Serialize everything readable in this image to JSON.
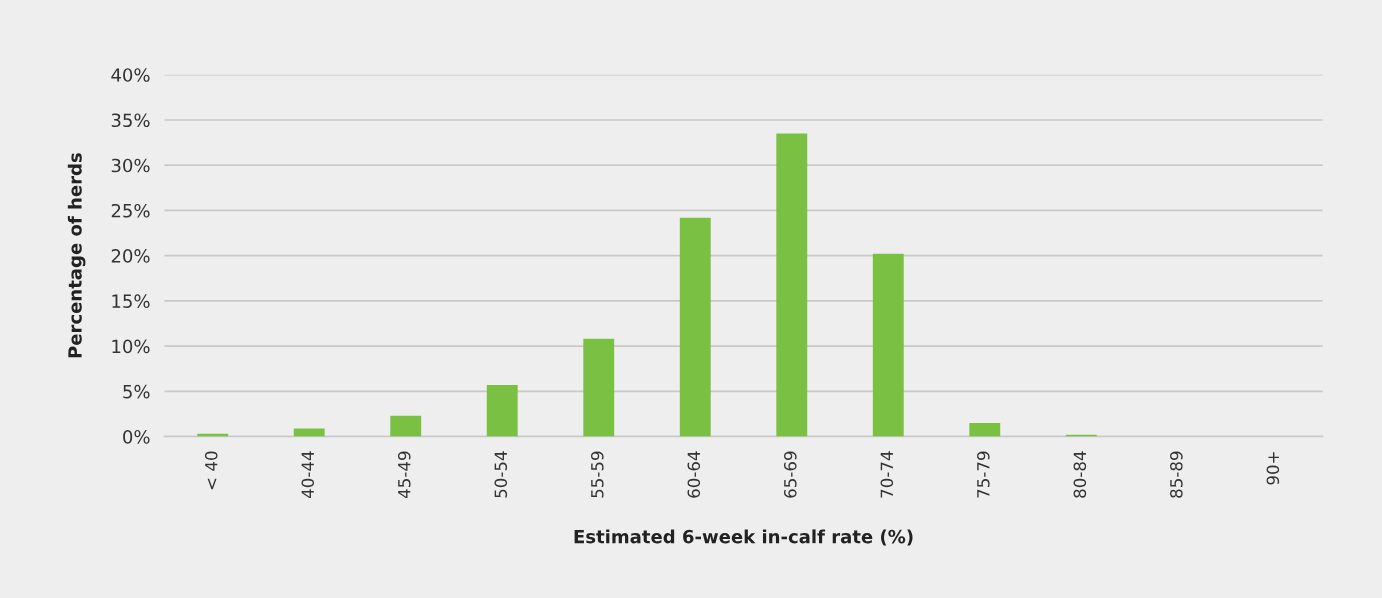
{
  "chart_data": {
    "type": "bar",
    "xlabel": "Estimated 6-week in-calf rate (%)",
    "ylabel": "Percentage of herds",
    "categories": [
      "< 40",
      "40-44",
      "45-49",
      "50-54",
      "55-59",
      "60-64",
      "65-69",
      "70-74",
      "75-79",
      "80-84",
      "85-89",
      "90+"
    ],
    "values": [
      0.3,
      0.9,
      2.3,
      5.7,
      10.8,
      24.2,
      33.5,
      20.2,
      1.5,
      0.2,
      0,
      0
    ],
    "color": "#7ac143",
    "ylim": [
      0,
      40
    ],
    "yticks": [
      {
        "value": 0,
        "label": "0%"
      },
      {
        "value": 5,
        "label": "5%"
      },
      {
        "value": 10,
        "label": "10%"
      },
      {
        "value": 15,
        "label": "15%"
      },
      {
        "value": 20,
        "label": "20%"
      },
      {
        "value": 25,
        "label": "25%"
      },
      {
        "value": 30,
        "label": "30%"
      },
      {
        "value": 35,
        "label": "35%"
      },
      {
        "value": 40,
        "label": "40%"
      }
    ],
    "grid": "y",
    "legend": false
  }
}
